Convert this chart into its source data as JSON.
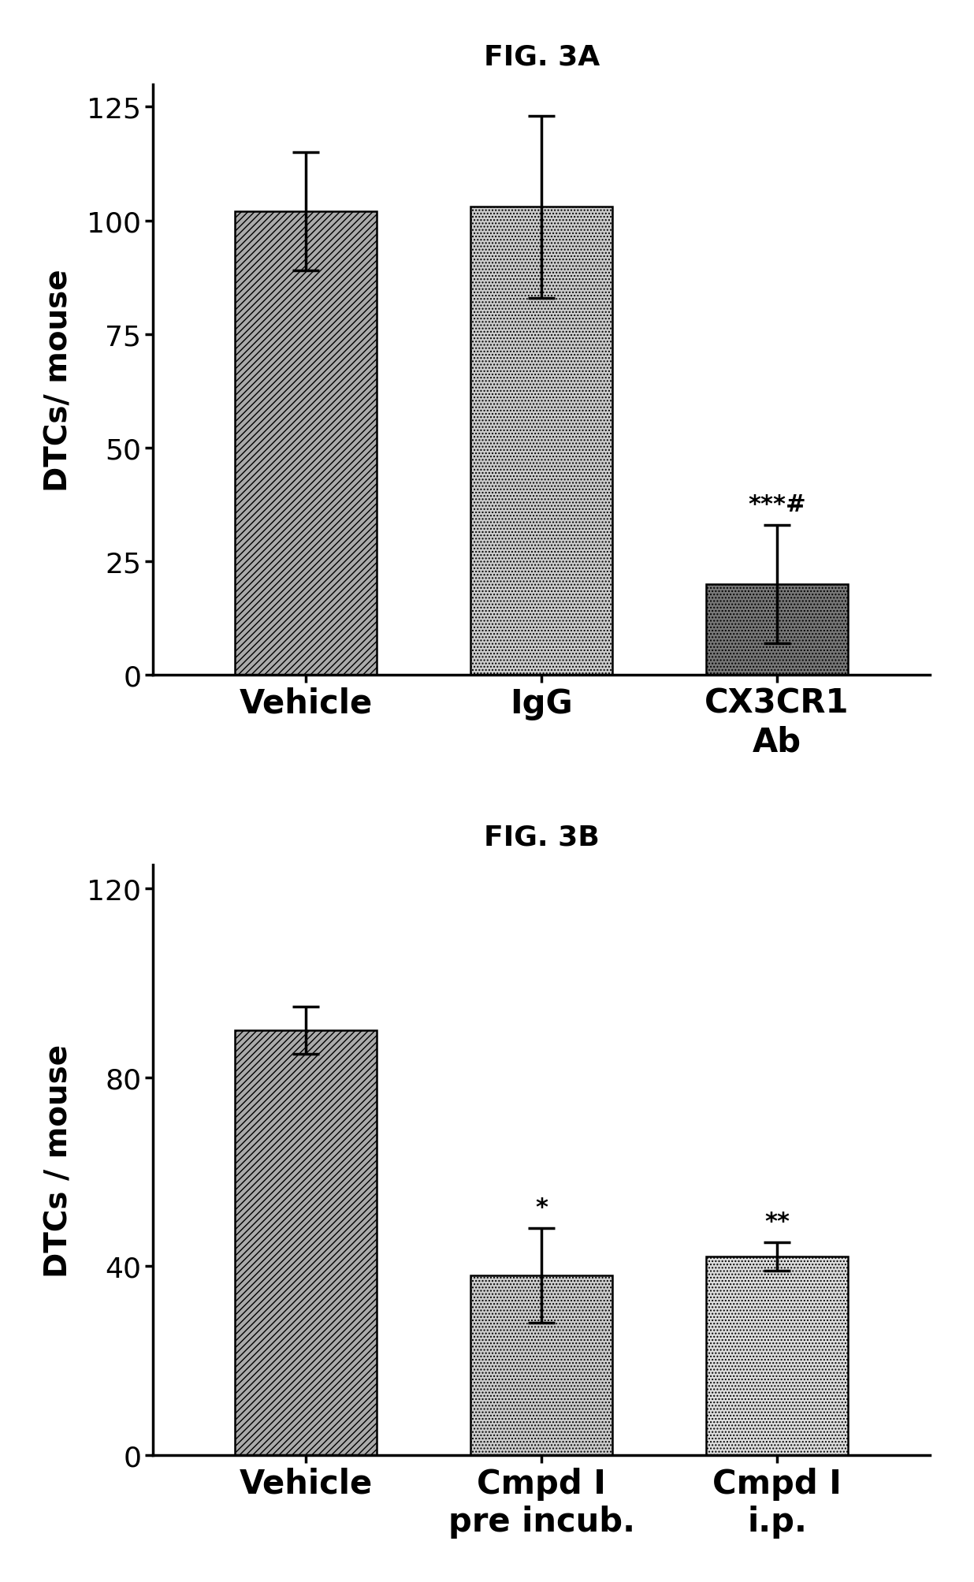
{
  "fig3a": {
    "title": "FIG. 3A",
    "categories": [
      "Vehicle",
      "IgG",
      "CX3CR1\nAb"
    ],
    "values": [
      102,
      103,
      20
    ],
    "errors": [
      13,
      20,
      13
    ],
    "ylabel": "DTCs/ mouse",
    "ylim": [
      0,
      130
    ],
    "yticks": [
      0,
      25,
      50,
      75,
      100,
      125
    ],
    "bar_hatches": [
      "////",
      "....",
      "...."
    ],
    "bar_facecolors": [
      "#aaaaaa",
      "#cccccc",
      "#777777"
    ],
    "significance_idx": 2,
    "significance_text": "***#"
  },
  "fig3b": {
    "title": "FIG. 3B",
    "categories": [
      "Vehicle",
      "Cmpd I\npre incub.",
      "Cmpd I\ni.p."
    ],
    "values": [
      90,
      38,
      42
    ],
    "errors": [
      5,
      10,
      3
    ],
    "ylabel": "DTCs / mouse",
    "ylim": [
      0,
      125
    ],
    "yticks": [
      0,
      40,
      80,
      120
    ],
    "bar_hatches": [
      "////",
      "....",
      "...."
    ],
    "bar_facecolors": [
      "#aaaaaa",
      "#cccccc",
      "#dddddd"
    ],
    "significance": [
      null,
      "*",
      "**"
    ]
  },
  "background_color": "#ffffff",
  "title_fontsize": 26,
  "label_fontsize": 28,
  "tick_fontsize": 26,
  "xtick_fontsize": 30,
  "sig_fontsize": 22,
  "bar_width": 0.6
}
